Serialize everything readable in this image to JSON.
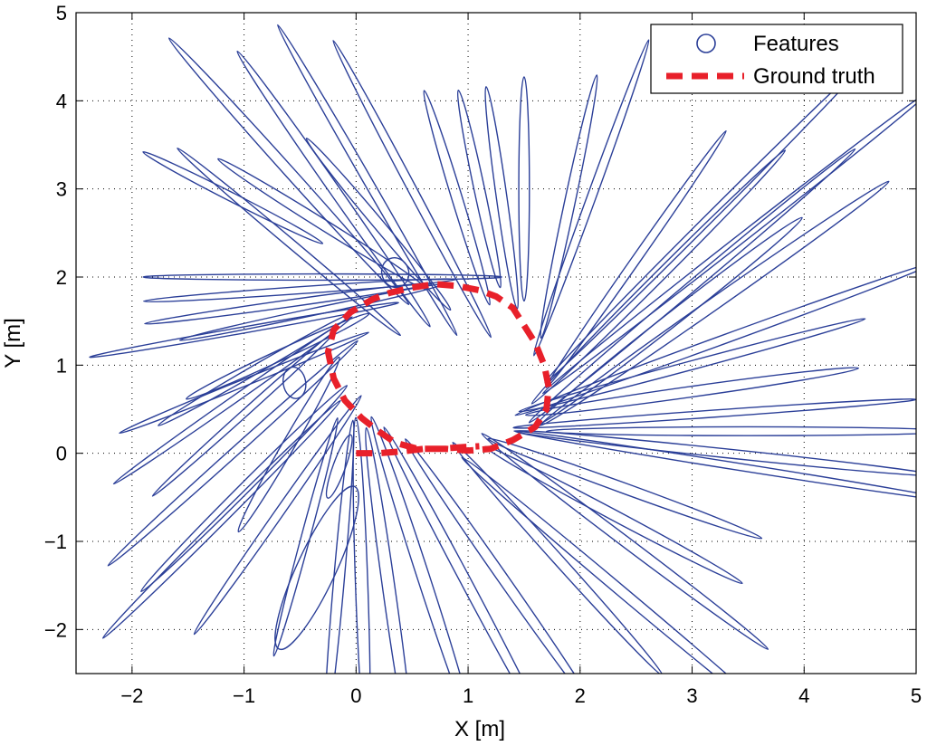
{
  "chart_data": {
    "type": "scatter",
    "xlabel": "X [m]",
    "ylabel": "Y [m]",
    "xlim": [
      -2.5,
      5
    ],
    "ylim": [
      -2.5,
      5
    ],
    "xticks": [
      -2,
      -1,
      0,
      1,
      2,
      3,
      4,
      5
    ],
    "yticks": [
      -2,
      -1,
      0,
      1,
      2,
      3,
      4,
      5
    ],
    "xtick_labels": [
      "−2",
      "−1",
      "0",
      "1",
      "2",
      "3",
      "4",
      "5"
    ],
    "ytick_labels": [
      "−2",
      "−1",
      "0",
      "1",
      "2",
      "3",
      "4",
      "5"
    ],
    "grid": true,
    "legend_position": "top-right",
    "colors": {
      "features": "#2b3f98",
      "ground_truth": "#e8202a"
    },
    "series": [
      {
        "name": "Features",
        "marker": "ellipse",
        "ellipses": [
          {
            "cx": -0.3,
            "cy": 2.0,
            "rx": 1.6,
            "ry": 0.035,
            "angle": 0
          },
          {
            "cx": -0.5,
            "cy": 1.85,
            "rx": 1.4,
            "ry": 0.04,
            "angle": 4
          },
          {
            "cx": -0.6,
            "cy": 1.7,
            "rx": 1.3,
            "ry": 0.04,
            "angle": 8
          },
          {
            "cx": -0.4,
            "cy": 1.6,
            "rx": 1.2,
            "ry": 0.04,
            "angle": 12
          },
          {
            "cx": -1.0,
            "cy": 1.4,
            "rx": 1.4,
            "ry": 0.035,
            "angle": 10
          },
          {
            "cx": -0.7,
            "cy": 1.1,
            "rx": 0.9,
            "ry": 0.06,
            "angle": 25
          },
          {
            "cx": -0.9,
            "cy": 0.95,
            "rx": 1.0,
            "ry": 0.05,
            "angle": 30
          },
          {
            "cx": -1.0,
            "cy": 0.8,
            "rx": 1.2,
            "ry": 0.04,
            "angle": 22
          },
          {
            "cx": -1.1,
            "cy": 0.6,
            "rx": 1.3,
            "ry": 0.04,
            "angle": 35
          },
          {
            "cx": -1.0,
            "cy": 0.45,
            "rx": 1.1,
            "ry": 0.04,
            "angle": 42
          },
          {
            "cx": -1.1,
            "cy": 2.9,
            "rx": 0.9,
            "ry": 0.05,
            "angle": -27
          },
          {
            "cx": -0.6,
            "cy": 3.2,
            "rx": 1.6,
            "ry": 0.06,
            "angle": -48
          },
          {
            "cx": -0.2,
            "cy": 3.0,
            "rx": 1.5,
            "ry": 0.06,
            "angle": -55
          },
          {
            "cx": 0.1,
            "cy": 3.1,
            "rx": 1.6,
            "ry": 0.05,
            "angle": -60
          },
          {
            "cx": 0.5,
            "cy": 3.0,
            "rx": 1.5,
            "ry": 0.05,
            "angle": -62
          },
          {
            "cx": -0.6,
            "cy": 2.4,
            "rx": 1.3,
            "ry": 0.05,
            "angle": -40
          },
          {
            "cx": -0.3,
            "cy": 2.6,
            "rx": 1.1,
            "ry": 0.06,
            "angle": -32
          },
          {
            "cx": 0.2,
            "cy": 2.6,
            "rx": 1.0,
            "ry": 0.06,
            "angle": -50
          },
          {
            "cx": 0.35,
            "cy": 2.05,
            "rx": 0.12,
            "ry": 0.17,
            "angle": 20
          },
          {
            "cx": 0.9,
            "cy": 2.9,
            "rx": 1.0,
            "ry": 0.06,
            "angle": -73
          },
          {
            "cx": 1.1,
            "cy": 3.0,
            "rx": 0.9,
            "ry": 0.06,
            "angle": -78
          },
          {
            "cx": 1.3,
            "cy": 2.9,
            "rx": 1.0,
            "ry": 0.06,
            "angle": -82
          },
          {
            "cx": 1.5,
            "cy": 3.0,
            "rx": 1.0,
            "ry": 0.06,
            "angle": -90
          },
          {
            "cx": 1.9,
            "cy": 2.8,
            "rx": 1.2,
            "ry": 0.06,
            "angle": 78
          },
          {
            "cx": 2.1,
            "cy": 2.9,
            "rx": 1.5,
            "ry": 0.05,
            "angle": 70
          },
          {
            "cx": 2.5,
            "cy": 2.2,
            "rx": 1.4,
            "ry": 0.05,
            "angle": 55
          },
          {
            "cx": 2.7,
            "cy": 2.0,
            "rx": 1.6,
            "ry": 0.06,
            "angle": 45
          },
          {
            "cx": 3.0,
            "cy": 1.9,
            "rx": 1.9,
            "ry": 0.06,
            "angle": 40
          },
          {
            "cx": 3.2,
            "cy": 1.7,
            "rx": 1.9,
            "ry": 0.07,
            "angle": 35
          },
          {
            "cx": 2.8,
            "cy": 1.5,
            "rx": 1.5,
            "ry": 0.08,
            "angle": 38
          },
          {
            "cx": 3.1,
            "cy": 2.6,
            "rx": 2.0,
            "ry": 0.05,
            "angle": 45
          },
          {
            "cx": 3.4,
            "cy": 2.4,
            "rx": 2.2,
            "ry": 0.05,
            "angle": 38
          },
          {
            "cx": 3.3,
            "cy": 1.3,
            "rx": 2.0,
            "ry": 0.05,
            "angle": 20
          },
          {
            "cx": 3.0,
            "cy": 1.0,
            "rx": 1.6,
            "ry": 0.05,
            "angle": 15
          },
          {
            "cx": 3.0,
            "cy": 0.7,
            "rx": 1.5,
            "ry": 0.06,
            "angle": 8
          },
          {
            "cx": 3.5,
            "cy": 0.25,
            "rx": 1.8,
            "ry": 0.05,
            "angle": 0
          },
          {
            "cx": 3.3,
            "cy": 0.0,
            "rx": 1.9,
            "ry": 0.05,
            "angle": -6
          },
          {
            "cx": 3.4,
            "cy": -0.15,
            "rx": 2.0,
            "ry": 0.04,
            "angle": -9
          },
          {
            "cx": 3.2,
            "cy": 0.45,
            "rx": 1.8,
            "ry": 0.04,
            "angle": 4
          },
          {
            "cx": 2.4,
            "cy": -0.4,
            "rx": 1.3,
            "ry": 0.06,
            "angle": -20
          },
          {
            "cx": 2.3,
            "cy": -0.7,
            "rx": 1.3,
            "ry": 0.06,
            "angle": -28
          },
          {
            "cx": 2.4,
            "cy": -1.0,
            "rx": 1.6,
            "ry": 0.06,
            "angle": -37
          },
          {
            "cx": 2.4,
            "cy": -1.6,
            "rx": 1.9,
            "ry": 0.06,
            "angle": -40
          },
          {
            "cx": 1.8,
            "cy": -1.2,
            "rx": 1.4,
            "ry": 0.06,
            "angle": -48
          },
          {
            "cx": 1.3,
            "cy": -1.4,
            "rx": 1.5,
            "ry": 0.06,
            "angle": -55
          },
          {
            "cx": 1.0,
            "cy": -1.5,
            "rx": 1.6,
            "ry": 0.06,
            "angle": -62
          },
          {
            "cx": 0.6,
            "cy": -1.4,
            "rx": 1.5,
            "ry": 0.07,
            "angle": -72
          },
          {
            "cx": 0.3,
            "cy": -1.6,
            "rx": 1.5,
            "ry": 0.07,
            "angle": -82
          },
          {
            "cx": 0.05,
            "cy": -1.5,
            "rx": 1.5,
            "ry": 0.07,
            "angle": -88
          },
          {
            "cx": -0.15,
            "cy": -1.4,
            "rx": 1.4,
            "ry": 0.06,
            "angle": 85
          },
          {
            "cx": -0.35,
            "cy": -1.3,
            "rx": 0.8,
            "ry": 0.22,
            "angle": 65
          },
          {
            "cx": -0.45,
            "cy": -0.95,
            "rx": 1.1,
            "ry": 0.05,
            "angle": 75
          },
          {
            "cx": -0.7,
            "cy": -0.7,
            "rx": 1.3,
            "ry": 0.05,
            "angle": 55
          },
          {
            "cx": -1.0,
            "cy": -0.4,
            "rx": 1.3,
            "ry": 0.06,
            "angle": 45
          },
          {
            "cx": -1.2,
            "cy": -0.75,
            "rx": 1.5,
            "ry": 0.05,
            "angle": 45
          },
          {
            "cx": -1.1,
            "cy": 0.0,
            "rx": 1.5,
            "ry": 0.05,
            "angle": 42
          },
          {
            "cx": -0.6,
            "cy": 0.1,
            "rx": 0.9,
            "ry": 0.07,
            "angle": 60
          },
          {
            "cx": -0.15,
            "cy": -0.15,
            "rx": 0.3,
            "ry": 0.07,
            "angle": 70
          },
          {
            "cx": -0.55,
            "cy": 0.8,
            "rx": 0.1,
            "ry": 0.18,
            "angle": 10
          }
        ]
      },
      {
        "name": "Ground truth",
        "line_style": "dashed",
        "x": [
          0.0,
          0.2,
          0.4,
          0.6,
          0.8,
          1.0,
          1.2,
          1.4,
          1.6,
          1.7,
          1.72,
          1.68,
          1.6,
          1.5,
          1.4,
          1.25,
          1.1,
          0.9,
          0.7,
          0.5,
          0.3,
          0.15,
          -0.05,
          -0.2,
          -0.25,
          -0.2,
          -0.1,
          0.05,
          0.2,
          0.35,
          0.55,
          0.75,
          0.95,
          1.1
        ],
        "y": [
          0.0,
          0.0,
          0.02,
          0.05,
          0.05,
          0.03,
          0.05,
          0.15,
          0.3,
          0.5,
          0.75,
          1.0,
          1.25,
          1.45,
          1.65,
          1.78,
          1.85,
          1.9,
          1.92,
          1.88,
          1.82,
          1.75,
          1.6,
          1.4,
          1.15,
          0.85,
          0.6,
          0.4,
          0.25,
          0.12,
          0.05,
          0.05,
          0.07,
          0.08
        ]
      }
    ],
    "legend": [
      {
        "label": "Features",
        "marker": "circle"
      },
      {
        "label": "Ground truth",
        "marker": "dashed-line"
      }
    ]
  }
}
